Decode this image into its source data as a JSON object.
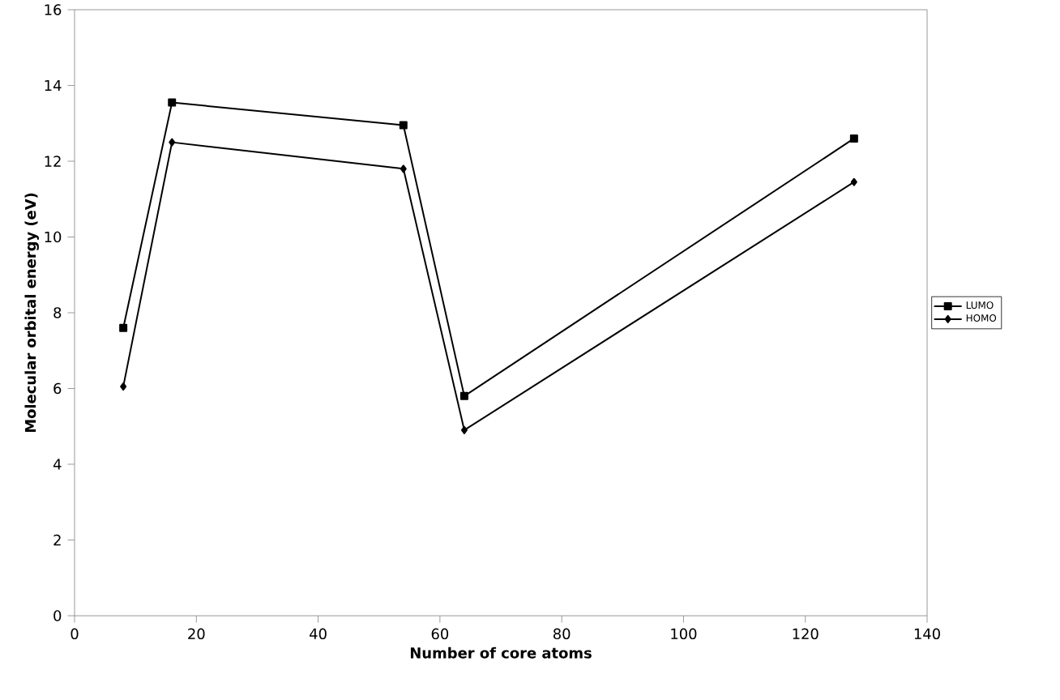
{
  "chart_data": {
    "type": "line",
    "xlabel": "Number of core atoms",
    "ylabel": "Molecular orbital energy (eV)",
    "xlim": [
      0,
      140
    ],
    "xticks": [
      0,
      20,
      40,
      60,
      80,
      100,
      120,
      140
    ],
    "ylim": [
      0,
      16
    ],
    "yticks": [
      0,
      2,
      4,
      6,
      8,
      10,
      12,
      14,
      16
    ],
    "x": [
      8,
      16,
      54,
      64,
      128
    ],
    "series": [
      {
        "name": "LUMO",
        "color": "#000000",
        "marker": "square",
        "values": [
          7.6,
          13.55,
          12.95,
          5.8,
          12.6
        ]
      },
      {
        "name": "HOMO",
        "color": "#000000",
        "marker": "diamond",
        "values": [
          6.05,
          12.5,
          11.8,
          4.9,
          11.45
        ]
      }
    ],
    "grid": false,
    "legend": "right",
    "line_style": "solid"
  }
}
